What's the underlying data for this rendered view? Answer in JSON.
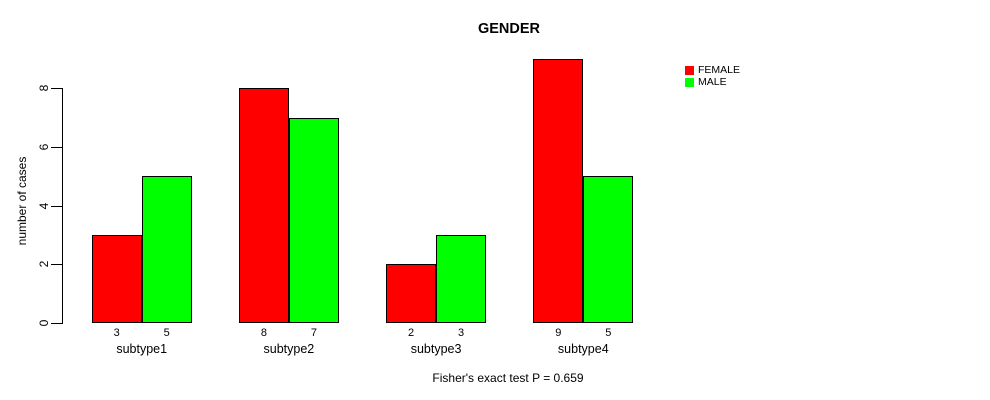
{
  "chart_data": {
    "type": "bar",
    "title": "GENDER",
    "xlabel": "",
    "ylabel": "number of cases",
    "footnote": "Fisher's exact test P = 0.659",
    "categories": [
      "subtype1",
      "subtype2",
      "subtype3",
      "subtype4"
    ],
    "series": [
      {
        "name": "FEMALE",
        "color": "#FF0000",
        "values": [
          3,
          8,
          2,
          9
        ]
      },
      {
        "name": "MALE",
        "color": "#00FF00",
        "values": [
          5,
          7,
          3,
          5
        ]
      }
    ],
    "bar_value_labels": [
      [
        3,
        8,
        2,
        9
      ],
      [
        5,
        7,
        3,
        5
      ]
    ],
    "ylim": [
      0,
      9
    ],
    "yticks": [
      0,
      2,
      4,
      6,
      8
    ],
    "grid": false,
    "legend_position": "top-right",
    "legend_entries": [
      {
        "label": "FEMALE",
        "color": "#FF0000"
      },
      {
        "label": "MALE",
        "color": "#00FF00"
      }
    ],
    "bar_border_color": "#000000",
    "background_color": "#FFFFFF"
  }
}
